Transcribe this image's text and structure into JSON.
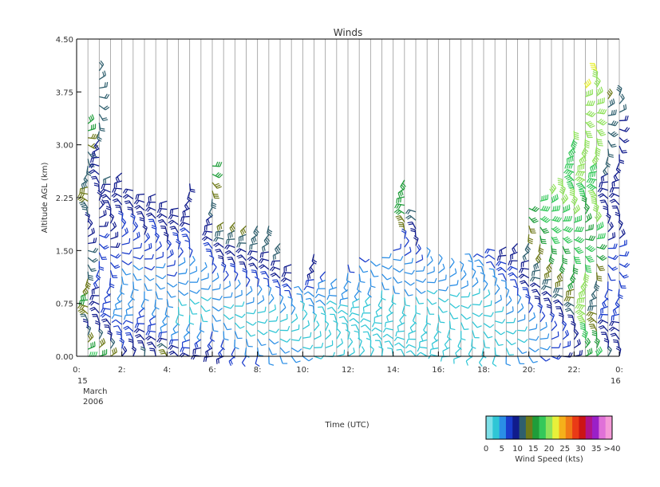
{
  "chart_data": {
    "type": "wind_barb_time_height",
    "title": "Winds",
    "xlabel": "Time (UTC)",
    "ylabel": "Altitude AGL (km)",
    "ylim": [
      0.0,
      4.5
    ],
    "xlim_hours": [
      0,
      24
    ],
    "y_ticks": [
      "0.00",
      "0.75",
      "1.50",
      "2.25",
      "3.00",
      "3.75",
      "4.50"
    ],
    "x_ticks": [
      {
        "hour": 0,
        "label": "0:"
      },
      {
        "hour": 2,
        "label": "2:"
      },
      {
        "hour": 4,
        "label": "4:"
      },
      {
        "hour": 6,
        "label": "6:"
      },
      {
        "hour": 8,
        "label": "8:"
      },
      {
        "hour": 10,
        "label": "10:"
      },
      {
        "hour": 12,
        "label": "12:"
      },
      {
        "hour": 14,
        "label": "14:"
      },
      {
        "hour": 16,
        "label": "16:"
      },
      {
        "hour": 18,
        "label": "18:"
      },
      {
        "hour": 20,
        "label": "20:"
      },
      {
        "hour": 22,
        "label": "22:"
      },
      {
        "hour": 24,
        "label": "0:"
      }
    ],
    "start_date_label": [
      "15",
      "March",
      "2006"
    ],
    "end_date_label": "16",
    "profile_times_hours": [
      0.5,
      1.0,
      1.5,
      2.0,
      2.5,
      3.0,
      3.5,
      4.0,
      4.5,
      5.0,
      5.5,
      6.0,
      6.5,
      7.0,
      7.5,
      8.0,
      8.5,
      9.0,
      9.5,
      10.0,
      10.5,
      11.0,
      11.5,
      12.0,
      12.5,
      13.0,
      13.5,
      14.0,
      14.5,
      15.0,
      15.5,
      16.0,
      16.5,
      17.0,
      17.5,
      18.0,
      18.5,
      19.0,
      19.5,
      20.0,
      20.5,
      21.0,
      21.5,
      22.0,
      22.5,
      23.0,
      23.5,
      24.0
    ],
    "profiles": [
      {
        "t": 0.5,
        "top": 3.3,
        "speeds": [
          18,
          16,
          14,
          12,
          10,
          12,
          14,
          15,
          16,
          16,
          15,
          14,
          13,
          12,
          12,
          12,
          11,
          10,
          10,
          11,
          12,
          13,
          14,
          15,
          14,
          13,
          12,
          12,
          12,
          13,
          14,
          15,
          16,
          17
        ]
      },
      {
        "t": 1.0,
        "top": 4.05,
        "speeds": [
          16,
          14,
          12,
          10,
          10,
          9,
          9,
          9,
          9,
          8,
          8,
          8,
          8,
          8,
          8,
          9,
          9,
          9,
          9,
          10,
          10,
          10,
          10,
          10,
          11,
          11,
          12,
          12,
          12,
          12,
          12,
          12,
          12,
          12
        ]
      },
      {
        "t": 1.5,
        "top": 2.55,
        "speeds": [
          14,
          12,
          11,
          10,
          9,
          8,
          8,
          7,
          7,
          7,
          8,
          8,
          8,
          8,
          9,
          9,
          9,
          10,
          10,
          10,
          11,
          11,
          11,
          12
        ]
      },
      {
        "t": 2.0,
        "top": 2.6,
        "speeds": [
          9,
          8,
          8,
          7,
          7,
          6,
          6,
          6,
          6,
          5,
          6,
          6,
          7,
          7,
          7,
          8,
          8,
          8,
          9,
          9,
          9,
          10,
          10,
          10
        ]
      },
      {
        "t": 2.5,
        "top": 2.35,
        "speeds": [
          10,
          9,
          8,
          8,
          7,
          6,
          6,
          6,
          5,
          5,
          6,
          6,
          7,
          7,
          8,
          8,
          8,
          9,
          9,
          9,
          10
        ]
      },
      {
        "t": 3.0,
        "top": 2.3,
        "speeds": [
          12,
          11,
          10,
          9,
          8,
          7,
          7,
          6,
          6,
          6,
          6,
          7,
          7,
          8,
          8,
          9,
          9,
          9,
          10,
          10,
          10
        ]
      },
      {
        "t": 3.5,
        "top": 2.3,
        "speeds": [
          11,
          10,
          9,
          8,
          8,
          7,
          6,
          6,
          5,
          5,
          6,
          6,
          7,
          7,
          8,
          8,
          8,
          9,
          9,
          10,
          10
        ]
      },
      {
        "t": 4.0,
        "top": 2.2,
        "speeds": [
          14,
          12,
          10,
          8,
          6,
          5,
          5,
          5,
          6,
          6,
          7,
          7,
          8,
          8,
          9,
          9,
          10,
          10,
          10,
          11
        ]
      },
      {
        "t": 4.5,
        "top": 2.1,
        "speeds": [
          10,
          9,
          8,
          6,
          5,
          4,
          4,
          4,
          5,
          5,
          6,
          6,
          7,
          8,
          8,
          9,
          9,
          10,
          10
        ]
      },
      {
        "t": 5.0,
        "top": 2.45,
        "speeds": [
          9,
          8,
          7,
          6,
          5,
          4,
          4,
          4,
          5,
          5,
          6,
          6,
          7,
          7,
          8,
          8,
          9,
          9,
          10,
          10,
          10,
          10
        ]
      },
      {
        "t": 5.5,
        "top": 1.2,
        "speeds": [
          10,
          9,
          8,
          6,
          5,
          4,
          4,
          4,
          5,
          5,
          6
        ]
      },
      {
        "t": 6.0,
        "top": 2.7,
        "speeds": [
          10,
          9,
          8,
          7,
          6,
          5,
          5,
          5,
          6,
          6,
          7,
          7,
          8,
          8,
          9,
          9,
          10,
          11,
          12,
          13,
          14,
          15,
          16,
          17
        ]
      },
      {
        "t": 6.5,
        "top": 1.9,
        "speeds": [
          9,
          8,
          7,
          6,
          5,
          4,
          4,
          5,
          6,
          7,
          8,
          9,
          10,
          11,
          12,
          13,
          14
        ]
      },
      {
        "t": 7.0,
        "top": 1.9,
        "speeds": [
          8,
          7,
          6,
          5,
          4,
          4,
          4,
          5,
          6,
          7,
          8,
          9,
          10,
          11,
          12,
          13,
          14
        ]
      },
      {
        "t": 7.5,
        "top": 1.85,
        "speeds": [
          7,
          6,
          5,
          4,
          4,
          4,
          5,
          6,
          7,
          8,
          9,
          10,
          11,
          12,
          13,
          14
        ]
      },
      {
        "t": 8.0,
        "top": 1.85,
        "speeds": [
          7,
          6,
          5,
          4,
          4,
          4,
          5,
          6,
          7,
          8,
          9,
          10,
          11,
          12,
          13,
          13
        ]
      },
      {
        "t": 8.5,
        "top": 1.85,
        "speeds": [
          6,
          5,
          5,
          4,
          4,
          4,
          5,
          6,
          7,
          8,
          9,
          10,
          11,
          12,
          13,
          13
        ]
      },
      {
        "t": 9.0,
        "top": 1.6,
        "speeds": [
          6,
          5,
          4,
          4,
          4,
          5,
          6,
          7,
          8,
          9,
          10,
          11,
          12,
          13
        ]
      },
      {
        "t": 9.5,
        "top": 1.3,
        "speeds": [
          5,
          5,
          4,
          4,
          4,
          5,
          6,
          7,
          8,
          9,
          10,
          11
        ]
      },
      {
        "t": 10.0,
        "top": 0.9,
        "speeds": [
          5,
          4,
          4,
          4,
          4,
          4,
          5,
          6
        ]
      },
      {
        "t": 10.5,
        "top": 1.45,
        "speeds": [
          4,
          4,
          4,
          4,
          4,
          5,
          5,
          6,
          7,
          8,
          9,
          10,
          11
        ]
      },
      {
        "t": 11.0,
        "top": 1.2,
        "speeds": [
          4,
          4,
          3,
          3,
          4,
          4,
          5,
          5,
          6,
          6,
          7
        ]
      },
      {
        "t": 11.5,
        "top": 1.1,
        "speeds": [
          4,
          4,
          3,
          3,
          4,
          4,
          4,
          5,
          5,
          6
        ]
      },
      {
        "t": 12.0,
        "top": 1.3,
        "speeds": [
          4,
          3,
          3,
          3,
          4,
          4,
          4,
          5,
          5,
          6,
          6,
          7
        ]
      },
      {
        "t": 12.5,
        "top": 1.4,
        "speeds": [
          4,
          3,
          3,
          3,
          3,
          4,
          4,
          4,
          5,
          5,
          6,
          6,
          7
        ]
      },
      {
        "t": 13.0,
        "top": 1.35,
        "speeds": [
          4,
          3,
          3,
          3,
          3,
          4,
          4,
          4,
          5,
          5,
          5,
          6
        ]
      },
      {
        "t": 13.5,
        "top": 1.4,
        "speeds": [
          4,
          4,
          3,
          3,
          3,
          3,
          4,
          4,
          4,
          5,
          5,
          6,
          6
        ]
      },
      {
        "t": 14.0,
        "top": 1.5,
        "speeds": [
          4,
          4,
          3,
          3,
          3,
          4,
          4,
          4,
          5,
          5,
          6,
          6,
          7
        ]
      },
      {
        "t": 14.5,
        "top": 2.5,
        "speeds": [
          4,
          4,
          3,
          3,
          3,
          4,
          4,
          4,
          5,
          5,
          6,
          6,
          7,
          7,
          8,
          14,
          15,
          16,
          16,
          17,
          17,
          16
        ]
      },
      {
        "t": 15.0,
        "top": 2.05,
        "speeds": [
          4,
          4,
          3,
          3,
          3,
          4,
          4,
          4,
          5,
          5,
          6,
          7,
          8,
          9,
          10,
          11,
          12,
          12
        ]
      },
      {
        "t": 15.5,
        "top": 1.4,
        "speeds": [
          4,
          4,
          3,
          3,
          3,
          3,
          4,
          4,
          4,
          5,
          5,
          6,
          6
        ]
      },
      {
        "t": 16.0,
        "top": 1.3,
        "speeds": [
          4,
          4,
          3,
          3,
          3,
          3,
          4,
          4,
          5,
          5,
          5,
          6
        ]
      },
      {
        "t": 16.5,
        "top": 1.25,
        "speeds": [
          4,
          3,
          3,
          3,
          3,
          4,
          4,
          4,
          5,
          5,
          6
        ]
      },
      {
        "t": 17.0,
        "top": 1.2,
        "speeds": [
          4,
          3,
          3,
          3,
          3,
          4,
          4,
          4,
          5,
          5,
          6
        ]
      },
      {
        "t": 17.5,
        "top": 1.35,
        "speeds": [
          4,
          4,
          3,
          3,
          3,
          3,
          4,
          4,
          5,
          5,
          5,
          6
        ]
      },
      {
        "t": 18.0,
        "top": 1.4,
        "speeds": [
          4,
          4,
          3,
          3,
          3,
          4,
          4,
          4,
          5,
          5,
          6,
          6,
          7
        ]
      },
      {
        "t": 18.5,
        "top": 1.5,
        "speeds": [
          4,
          4,
          3,
          3,
          4,
          4,
          5,
          5,
          6,
          6,
          7,
          7,
          8
        ]
      },
      {
        "t": 19.0,
        "top": 1.55,
        "speeds": [
          5,
          4,
          4,
          4,
          4,
          5,
          5,
          6,
          6,
          7,
          8,
          8,
          9,
          9
        ]
      },
      {
        "t": 19.5,
        "top": 1.6,
        "speeds": [
          5,
          5,
          4,
          4,
          5,
          5,
          6,
          7,
          7,
          8,
          8,
          9,
          10,
          10
        ]
      },
      {
        "t": 20.0,
        "top": 2.1,
        "speeds": [
          6,
          5,
          5,
          5,
          6,
          7,
          8,
          8,
          9,
          10,
          10,
          11,
          12,
          13,
          14,
          15,
          16,
          17
        ]
      },
      {
        "t": 20.5,
        "top": 2.2,
        "speeds": [
          7,
          6,
          6,
          6,
          7,
          8,
          9,
          10,
          11,
          12,
          12,
          13,
          14,
          15,
          16,
          17,
          18,
          18,
          18
        ]
      },
      {
        "t": 21.0,
        "top": 2.3,
        "speeds": [
          8,
          7,
          7,
          7,
          8,
          9,
          10,
          11,
          12,
          13,
          14,
          15,
          16,
          17,
          18,
          18,
          19,
          19,
          19,
          20
        ]
      },
      {
        "t": 21.5,
        "top": 2.4,
        "speeds": [
          9,
          8,
          8,
          8,
          9,
          10,
          11,
          12,
          13,
          14,
          15,
          16,
          17,
          17,
          18,
          18,
          19,
          19,
          20,
          20,
          20
        ]
      },
      {
        "t": 22.0,
        "top": 3.2,
        "speeds": [
          10,
          9,
          9,
          10,
          11,
          12,
          13,
          14,
          15,
          16,
          17,
          17,
          18,
          18,
          19,
          19,
          19,
          20,
          20,
          20,
          19,
          19,
          18,
          18,
          18,
          19,
          19,
          20
        ]
      },
      {
        "t": 22.5,
        "top": 3.8,
        "speeds": [
          16,
          17,
          18,
          19,
          20,
          21,
          22,
          22,
          22,
          21,
          20,
          19,
          18,
          18,
          17,
          16,
          16,
          16,
          17,
          18,
          19,
          20,
          21,
          22,
          22,
          22,
          21,
          20,
          20,
          21,
          22,
          22,
          23
        ]
      },
      {
        "t": 23.0,
        "top": 4.05,
        "speeds": [
          18,
          17,
          16,
          15,
          15,
          14,
          13,
          12,
          12,
          13,
          14,
          15,
          16,
          17,
          18,
          19,
          20,
          21,
          21,
          20,
          19,
          18,
          18,
          19,
          20,
          21,
          22,
          22,
          22,
          21,
          20,
          20,
          21,
          22,
          24
        ]
      },
      {
        "t": 23.5,
        "top": 3.65,
        "speeds": [
          12,
          11,
          10,
          9,
          9,
          8,
          8,
          8,
          7,
          7,
          7,
          8,
          8,
          8,
          9,
          9,
          9,
          10,
          10,
          10,
          11,
          11,
          11,
          12,
          12,
          12,
          12,
          13,
          13,
          13,
          13,
          14
        ]
      },
      {
        "t": 24.0,
        "top": 3.7,
        "speeds": [
          10,
          10,
          9,
          9,
          9,
          8,
          8,
          8,
          8,
          8,
          8,
          8,
          8,
          8,
          9,
          9,
          9,
          9,
          9,
          9,
          9,
          10,
          10,
          10,
          10,
          10,
          11,
          11,
          11,
          12,
          12,
          13
        ]
      }
    ],
    "colorbar": {
      "label": "Wind Speed (kts)",
      "tick_labels": [
        "0",
        "5",
        "10",
        "15",
        "20",
        "25",
        "30",
        "35",
        ">40"
      ],
      "colors": [
        "#7ee0e8",
        "#2fc6d6",
        "#2a8ee6",
        "#1a3ccc",
        "#101b8c",
        "#2f5f6e",
        "#6f7a1a",
        "#1f9d3a",
        "#34c85a",
        "#8fe25a",
        "#e8f03a",
        "#f5b01a",
        "#f07a16",
        "#ea3a16",
        "#cc1414",
        "#b0148a",
        "#9a20c8",
        "#e070d8",
        "#f59ad8"
      ]
    }
  }
}
